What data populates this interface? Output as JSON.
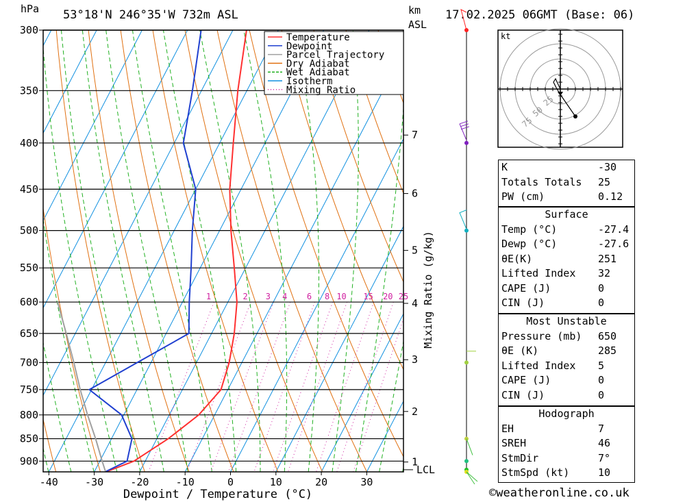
{
  "header": {
    "pressure_unit": "hPa",
    "location": "53°18'N  246°35'W  732m  ASL",
    "km_label": "km",
    "asl_label": "ASL",
    "datetime": "17.02.2025  06GMT  (Base: 06)"
  },
  "chart_data": {
    "type": "line",
    "subtype": "skew-t log-p",
    "xlabel": "Dewpoint / Temperature (°C)",
    "ylabel": "hPa",
    "pressure_ticks": [
      300,
      350,
      400,
      450,
      500,
      550,
      600,
      650,
      700,
      750,
      800,
      850,
      900
    ],
    "temperature_ticks": [
      -40,
      -30,
      -20,
      -10,
      0,
      10,
      20,
      30
    ],
    "pressure_range": [
      300,
      925
    ],
    "km_ticks": [
      {
        "label": "7",
        "p": 392
      },
      {
        "label": "6",
        "p": 455
      },
      {
        "label": "5",
        "p": 526
      },
      {
        "label": "4",
        "p": 602
      },
      {
        "label": "3",
        "p": 695
      },
      {
        "label": "2",
        "p": 793
      },
      {
        "label": "1",
        "p": 902
      }
    ],
    "lcl_label": "LCL",
    "lcl_pressure": 920,
    "mixing_ratio_axis_label": "Mixing Ratio (g/kg)",
    "mixing_ratio_labels": [
      "1",
      "2",
      "3",
      "4",
      "6",
      "8",
      "10",
      "15",
      "20",
      "25"
    ],
    "mixing_ratio_values": [
      1,
      2,
      3,
      4,
      6,
      8,
      10,
      15,
      20,
      25
    ],
    "legend": {
      "placement": "top-center",
      "entries": [
        {
          "name": "Temperature",
          "color": "#ff3030"
        },
        {
          "name": "Dewpoint",
          "color": "#2040d0"
        },
        {
          "name": "Parcel Trajectory",
          "color": "#a0a0a0"
        },
        {
          "name": "Dry Adiabat",
          "color": "#e07010"
        },
        {
          "name": "Wet Adiabat",
          "color": "#20b020"
        },
        {
          "name": "Isotherm",
          "color": "#1090e0"
        },
        {
          "name": "Mixing Ratio",
          "color": "#d020a0"
        }
      ]
    },
    "series": [
      {
        "name": "Temperature",
        "color": "#ff3030",
        "points": [
          [
            925,
            -27.4
          ],
          [
            900,
            -22.5
          ],
          [
            850,
            -17.5
          ],
          [
            800,
            -13.5
          ],
          [
            750,
            -11.5
          ],
          [
            700,
            -12.8
          ],
          [
            650,
            -15.0
          ],
          [
            600,
            -18.0
          ],
          [
            550,
            -22.5
          ],
          [
            500,
            -27.5
          ],
          [
            450,
            -32.5
          ],
          [
            400,
            -37.0
          ],
          [
            350,
            -42.0
          ],
          [
            300,
            -47.0
          ]
        ]
      },
      {
        "name": "Dewpoint",
        "color": "#2040d0",
        "points": [
          [
            925,
            -27.6
          ],
          [
            900,
            -24.0
          ],
          [
            850,
            -25.5
          ],
          [
            800,
            -30.5
          ],
          [
            750,
            -40.5
          ],
          [
            700,
            -33.0
          ],
          [
            650,
            -25.0
          ],
          [
            600,
            -28.5
          ],
          [
            550,
            -32.0
          ],
          [
            500,
            -36.0
          ],
          [
            450,
            -40.0
          ],
          [
            400,
            -48.0
          ],
          [
            350,
            -52.0
          ],
          [
            300,
            -57.0
          ]
        ]
      },
      {
        "name": "Parcel Trajectory",
        "color": "#a0a0a0",
        "points": [
          [
            925,
            -27.5
          ],
          [
            900,
            -29.5
          ],
          [
            850,
            -33.5
          ],
          [
            800,
            -38.0
          ],
          [
            750,
            -42.5
          ],
          [
            700,
            -47.0
          ],
          [
            650,
            -52.0
          ],
          [
            600,
            -57.5
          ]
        ]
      }
    ],
    "wind_profile": {
      "color_points": [
        {
          "p": 300,
          "color": "#ff2020"
        },
        {
          "p": 400,
          "color": "#8020c0"
        },
        {
          "p": 500,
          "color": "#10b0c0"
        },
        {
          "p": 700,
          "color": "#a0d040"
        },
        {
          "p": 850,
          "color": "#c0d040"
        },
        {
          "p": 900,
          "color": "#20c080"
        },
        {
          "p": 920,
          "color": "#20c020"
        },
        {
          "p": 925,
          "color": "#e0e020"
        }
      ]
    }
  },
  "hodograph": {
    "unit_label": "kt",
    "ring_labels": [
      "25",
      "50",
      "75"
    ]
  },
  "indices": {
    "k_label": "K",
    "k_value": "-30",
    "tt_label": "Totals Totals",
    "tt_value": "25",
    "pw_label": "PW (cm)",
    "pw_value": "0.12"
  },
  "surface": {
    "title": "Surface",
    "rows": [
      {
        "label": "Temp (°C)",
        "value": "-27.4"
      },
      {
        "label": "Dewp (°C)",
        "value": "-27.6"
      },
      {
        "label": "θE(K)",
        "value": "251"
      },
      {
        "label": "Lifted Index",
        "value": "32"
      },
      {
        "label": "CAPE (J)",
        "value": "0"
      },
      {
        "label": "CIN (J)",
        "value": "0"
      }
    ]
  },
  "most_unstable": {
    "title": "Most Unstable",
    "rows": [
      {
        "label": "Pressure (mb)",
        "value": "650"
      },
      {
        "label": "θE (K)",
        "value": "285"
      },
      {
        "label": "Lifted Index",
        "value": "5"
      },
      {
        "label": "CAPE (J)",
        "value": "0"
      },
      {
        "label": "CIN (J)",
        "value": "0"
      }
    ]
  },
  "hodograph_stats": {
    "title": "Hodograph",
    "rows": [
      {
        "label": "EH",
        "value": "7"
      },
      {
        "label": "SREH",
        "value": "46"
      },
      {
        "label": "StmDir",
        "value": "7°"
      },
      {
        "label": "StmSpd (kt)",
        "value": "10"
      }
    ]
  },
  "footer": {
    "copyright": "©weatheronline.co.uk"
  }
}
